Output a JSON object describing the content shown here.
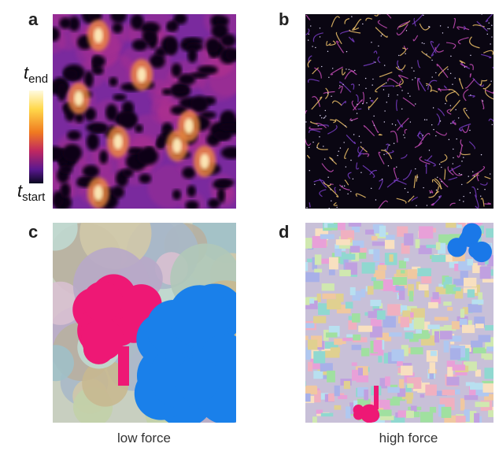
{
  "panels": [
    {
      "label": "a"
    },
    {
      "label": "b"
    },
    {
      "label": "c"
    },
    {
      "label": "d"
    }
  ],
  "colorbar": {
    "top": {
      "symbol": "t",
      "subscript": "end"
    },
    "bottom": {
      "symbol": "t",
      "subscript": "start"
    }
  },
  "captions": [
    "low force",
    "high force"
  ]
}
